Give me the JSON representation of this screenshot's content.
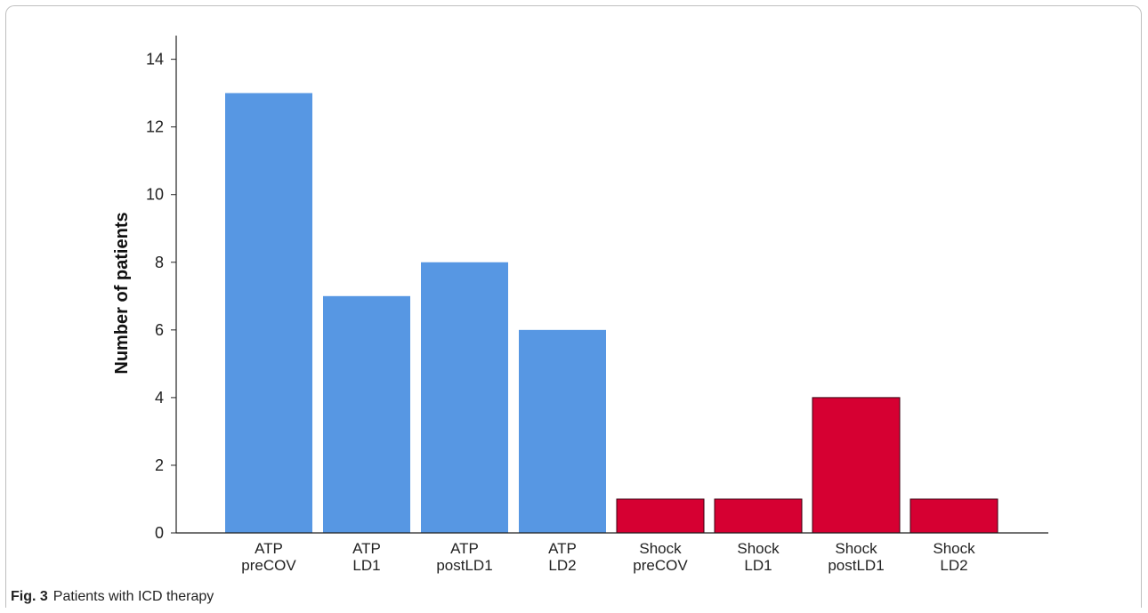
{
  "chart_data": {
    "type": "bar",
    "categories": [
      [
        "ATP",
        "preCOV"
      ],
      [
        "ATP",
        "LD1"
      ],
      [
        "ATP",
        "postLD1"
      ],
      [
        "ATP",
        "LD2"
      ],
      [
        "Shock",
        "preCOV"
      ],
      [
        "Shock",
        "LD1"
      ],
      [
        "Shock",
        "postLD1"
      ],
      [
        "Shock",
        "LD2"
      ]
    ],
    "values": [
      13,
      7,
      8,
      6,
      1,
      1,
      4,
      1
    ],
    "bar_colors": [
      "#5797e3",
      "#5797e3",
      "#5797e3",
      "#5797e3",
      "#d60032",
      "#d60032",
      "#d60032",
      "#d60032"
    ],
    "ylabel": "Number of patients",
    "xlabel": "",
    "ylim": [
      0,
      14.7
    ],
    "yticks": [
      0,
      2,
      4,
      6,
      8,
      10,
      12,
      14
    ],
    "grid": false
  },
  "caption": {
    "fig_number": "Fig. 3",
    "text": "Patients with ICD therapy"
  }
}
